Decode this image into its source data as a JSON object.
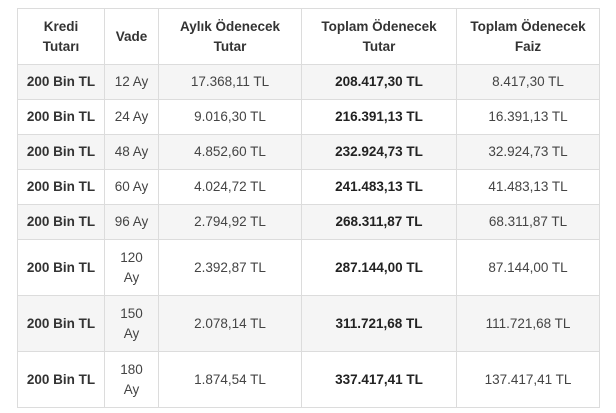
{
  "table": {
    "headers": [
      [
        "Kredi",
        "Tutarı"
      ],
      [
        "Vade"
      ],
      [
        "Aylık Ödenecek",
        "Tutar"
      ],
      [
        "Toplam Ödenecek",
        "Tutar"
      ],
      [
        "Toplam Ödenecek",
        "Faiz"
      ]
    ],
    "rows": [
      {
        "amount": "200 Bin TL",
        "term": [
          "12 Ay"
        ],
        "monthly": "17.368,11 TL",
        "total": "208.417,30 TL",
        "interest": "8.417,30 TL"
      },
      {
        "amount": "200 Bin TL",
        "term": [
          "24 Ay"
        ],
        "monthly": "9.016,30 TL",
        "total": "216.391,13 TL",
        "interest": "16.391,13 TL"
      },
      {
        "amount": "200 Bin TL",
        "term": [
          "48 Ay"
        ],
        "monthly": "4.852,60 TL",
        "total": "232.924,73 TL",
        "interest": "32.924,73 TL"
      },
      {
        "amount": "200 Bin TL",
        "term": [
          "60 Ay"
        ],
        "monthly": "4.024,72 TL",
        "total": "241.483,13 TL",
        "interest": "41.483,13 TL"
      },
      {
        "amount": "200 Bin TL",
        "term": [
          "96 Ay"
        ],
        "monthly": "2.794,92 TL",
        "total": "268.311,87 TL",
        "interest": "68.311,87 TL"
      },
      {
        "amount": "200 Bin TL",
        "term": [
          "120",
          "Ay"
        ],
        "monthly": "2.392,87 TL",
        "total": "287.144,00 TL",
        "interest": "87.144,00 TL"
      },
      {
        "amount": "200 Bin TL",
        "term": [
          "150",
          "Ay"
        ],
        "monthly": "2.078,14 TL",
        "total": "311.721,68 TL",
        "interest": "111.721,68 TL"
      },
      {
        "amount": "200 Bin TL",
        "term": [
          "180",
          "Ay"
        ],
        "monthly": "1.874,54 TL",
        "total": "337.417,41 TL",
        "interest": "137.417,41 TL"
      }
    ]
  }
}
